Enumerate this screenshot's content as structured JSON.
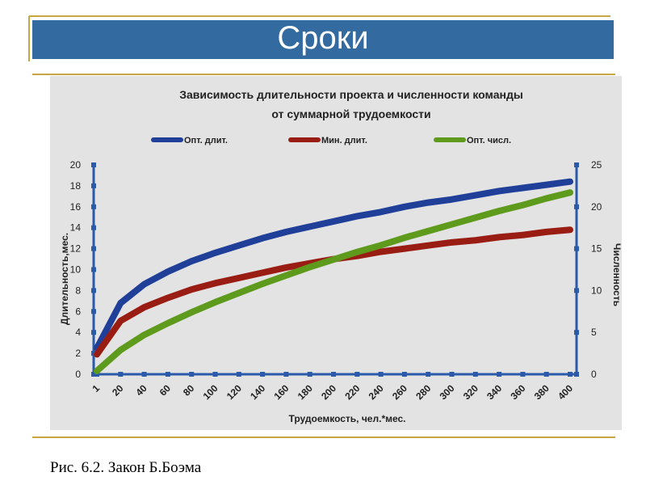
{
  "slide": {
    "title": "Сроки",
    "caption": "Рис. 6.2. Закон Б.Боэма"
  },
  "chart_data": {
    "type": "line",
    "title": [
      "Зависимость длительности проекта и численности команды",
      "от суммарной трудоемкости"
    ],
    "x_label": "Трудоемкость, чел.*мес.",
    "y_label": "Длительность,мес.",
    "y2_label": "Численность",
    "categories": [
      "1",
      "20",
      "40",
      "60",
      "80",
      "100",
      "120",
      "140",
      "160",
      "180",
      "200",
      "220",
      "240",
      "260",
      "280",
      "300",
      "320",
      "340",
      "360",
      "380",
      "400"
    ],
    "series": [
      {
        "name": "Опт. длит.",
        "color": "#1f3f99",
        "values": [
          2.5,
          6.8,
          8.6,
          9.8,
          10.8,
          11.6,
          12.3,
          13.0,
          13.6,
          14.1,
          14.6,
          15.1,
          15.5,
          16.0,
          16.4,
          16.7,
          17.1,
          17.5,
          17.8,
          18.1,
          18.4
        ]
      },
      {
        "name": "Мин. длит.",
        "color": "#9a1d14",
        "values": [
          1.9,
          5.1,
          6.4,
          7.3,
          8.1,
          8.7,
          9.2,
          9.7,
          10.2,
          10.6,
          11.0,
          11.3,
          11.7,
          12.0,
          12.3,
          12.6,
          12.8,
          13.1,
          13.3,
          13.6,
          13.8
        ]
      },
      {
        "name": "Опт. числ.",
        "color": "#5e9a1c",
        "axis": "y2",
        "values": [
          0.4,
          2.9,
          4.7,
          6.1,
          7.4,
          8.6,
          9.7,
          10.8,
          11.8,
          12.8,
          13.7,
          14.6,
          15.4,
          16.3,
          17.1,
          17.9,
          18.7,
          19.5,
          20.2,
          21.0,
          21.7
        ]
      }
    ],
    "ylim": [
      0,
      20
    ],
    "yticks": [
      0,
      2,
      4,
      6,
      8,
      10,
      12,
      14,
      16,
      18,
      20
    ],
    "y2lim": [
      0,
      25
    ],
    "y2ticks": [
      0,
      5,
      10,
      15,
      20,
      25
    ],
    "grid": false,
    "legend": "top"
  }
}
